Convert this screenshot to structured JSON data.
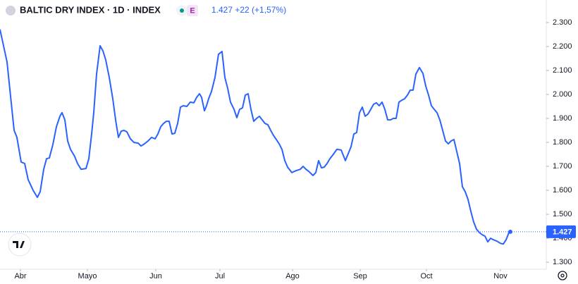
{
  "chart_data": {
    "type": "line",
    "title": "BALTIC DRY INDEX · 1D · INDEX",
    "exchange_badge": "E",
    "quote": "1.427 +22 (+1,57%)",
    "color": "#2962ff",
    "grid": false,
    "x": [
      0,
      10,
      20,
      24,
      30,
      35,
      40,
      47,
      53,
      57,
      62,
      66,
      70,
      75,
      80,
      85,
      88,
      92,
      96,
      100,
      106,
      110,
      115,
      122,
      126,
      130,
      133,
      137,
      142,
      146,
      150,
      155,
      160,
      164,
      168,
      172,
      176,
      180,
      185,
      190,
      196,
      200,
      205,
      210,
      215,
      220,
      224,
      228,
      232,
      236,
      240,
      244,
      248,
      252,
      256,
      260,
      265,
      270,
      275,
      279,
      283,
      286,
      290,
      293,
      296,
      300,
      305,
      310,
      315,
      319,
      323,
      327,
      332,
      336,
      340,
      344,
      348,
      352,
      356,
      360,
      364,
      368,
      372,
      376,
      380,
      384,
      388,
      392,
      396,
      400,
      404,
      408,
      414,
      420,
      426,
      430,
      434,
      438,
      444,
      448,
      452,
      456,
      460,
      464,
      468,
      472,
      478,
      484,
      490,
      494,
      498,
      502,
      506,
      510,
      514,
      518,
      522,
      526,
      530,
      534,
      538,
      542,
      546,
      550,
      554,
      558,
      562,
      566,
      570,
      574,
      578,
      582,
      586,
      590,
      595,
      600,
      604,
      608,
      612,
      616,
      620,
      624,
      628,
      632,
      636,
      640,
      644,
      648,
      652,
      656,
      660,
      664,
      668,
      672,
      676,
      680,
      684,
      688,
      692,
      696,
      700,
      705,
      710,
      714,
      718,
      722,
      724
    ],
    "values": [
      2271,
      2135,
      1850,
      1821,
      1718,
      1712,
      1644,
      1600,
      1571,
      1594,
      1688,
      1732,
      1735,
      1791,
      1865,
      1909,
      1924,
      1894,
      1806,
      1771,
      1741,
      1712,
      1688,
      1691,
      1732,
      1835,
      1924,
      2085,
      2203,
      2182,
      2144,
      2071,
      1982,
      1894,
      1821,
      1847,
      1850,
      1844,
      1815,
      1800,
      1797,
      1785,
      1794,
      1806,
      1821,
      1815,
      1835,
      1865,
      1879,
      1888,
      1888,
      1835,
      1838,
      1879,
      1947,
      1953,
      1950,
      1968,
      1965,
      1988,
      2003,
      1988,
      1932,
      1953,
      1982,
      2012,
      2071,
      2168,
      2179,
      2071,
      2026,
      1968,
      1938,
      1903,
      1938,
      1944,
      1997,
      2003,
      1938,
      1888,
      1900,
      1909,
      1894,
      1879,
      1874,
      1850,
      1829,
      1812,
      1794,
      1771,
      1724,
      1697,
      1674,
      1682,
      1688,
      1700,
      1688,
      1679,
      1662,
      1674,
      1724,
      1694,
      1697,
      1712,
      1732,
      1747,
      1771,
      1768,
      1724,
      1753,
      1782,
      1835,
      1841,
      1924,
      1947,
      1909,
      1918,
      1938,
      1959,
      1965,
      1953,
      1968,
      1938,
      1894,
      1894,
      1900,
      1900,
      1968,
      1976,
      1982,
      1997,
      2018,
      2018,
      2085,
      2112,
      2088,
      2035,
      1997,
      1953,
      1938,
      1924,
      1894,
      1850,
      1806,
      1794,
      1806,
      1812,
      1762,
      1712,
      1615,
      1594,
      1562,
      1512,
      1468,
      1438,
      1424,
      1415,
      1409,
      1385,
      1400,
      1394,
      1388,
      1379,
      1376,
      1394,
      1424,
      1427
    ],
    "last_price": {
      "value": 1427,
      "label": "1.427"
    },
    "xlim": [
      0,
      775
    ],
    "xticks": [
      {
        "value": 29,
        "label": "Abr"
      },
      {
        "value": 124,
        "label": "Mayo"
      },
      {
        "value": 221,
        "label": "Jun"
      },
      {
        "value": 312,
        "label": "Jul"
      },
      {
        "value": 415,
        "label": "Ago"
      },
      {
        "value": 511,
        "label": "Sep"
      },
      {
        "value": 605,
        "label": "Oct"
      },
      {
        "value": 710,
        "label": "Nov"
      }
    ],
    "ylim": [
      1271,
      2394
    ],
    "yticks": [
      {
        "value": 2300,
        "label": "2.300"
      },
      {
        "value": 2200,
        "label": "2.200"
      },
      {
        "value": 2100,
        "label": "2.100"
      },
      {
        "value": 2000,
        "label": "2.000"
      },
      {
        "value": 1900,
        "label": "1.900"
      },
      {
        "value": 1800,
        "label": "1.800"
      },
      {
        "value": 1700,
        "label": "1.700"
      },
      {
        "value": 1600,
        "label": "1.600"
      },
      {
        "value": 1500,
        "label": "1.500"
      },
      {
        "value": 1400,
        "label": "1.400"
      },
      {
        "value": 1300,
        "label": "1.300"
      }
    ]
  }
}
